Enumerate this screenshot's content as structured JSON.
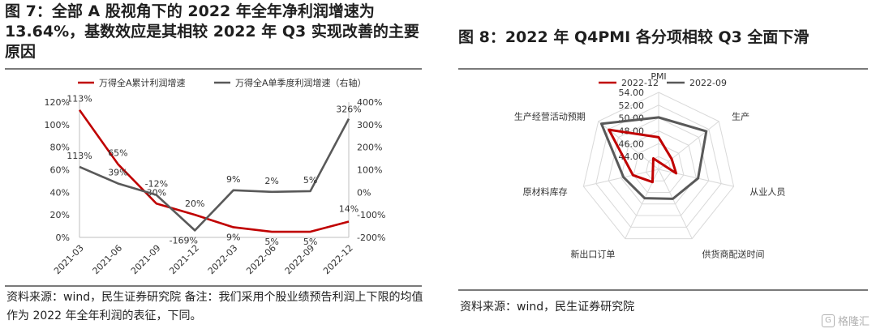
{
  "left": {
    "title": "图 7：全部 A 股视角下的 2022 年全年净利润增速为 13.64%，基数效应是其相较 2022 年 Q3 实现改善的主要原因",
    "note": "资料来源：wind，民生证券研究院 备注：我们采用个股业绩预告利润上下限的均值作为 2022 年全年利润的表征，下同。"
  },
  "right": {
    "title": "图 8：2022 年 Q4PMI 各分项相较 Q3 全面下滑",
    "note": "资料来源：wind，民生证券研究院"
  },
  "watermark": "格隆汇",
  "colors": {
    "red": "#c00000",
    "gray": "#595959",
    "grid": "#d9d9d9"
  },
  "chart_data": [
    {
      "type": "line",
      "categories": [
        "2021-03",
        "2021-06",
        "2021-09",
        "2021-12",
        "2022-03",
        "2022-06",
        "2022-09",
        "2022-12"
      ],
      "series": [
        {
          "name": "万得全A累计利润增速",
          "axis": "left",
          "values": [
            113,
            65,
            30,
            20,
            9,
            5,
            5,
            14
          ],
          "labels": [
            "113%",
            "65%",
            "30%",
            "20%",
            "9%",
            "5%",
            "5%",
            "14%"
          ],
          "color": "#c00000"
        },
        {
          "name": "万得全A单季度利润增速（右轴）",
          "axis": "right",
          "values": [
            113,
            39,
            -12,
            -169,
            9,
            2,
            5,
            326
          ],
          "labels": [
            "113%",
            "39%",
            "-12%",
            "-169%",
            "9%",
            "2%",
            "5%",
            "326%"
          ],
          "color": "#595959"
        }
      ],
      "y_left": {
        "ylim": [
          0,
          120
        ],
        "ticks": [
          "0%",
          "20%",
          "40%",
          "60%",
          "80%",
          "100%",
          "120%"
        ]
      },
      "y_right": {
        "ylim": [
          -200,
          400
        ],
        "ticks": [
          "-200%",
          "-100%",
          "0%",
          "100%",
          "200%",
          "300%",
          "400%"
        ]
      },
      "legend": "top",
      "grid": false
    },
    {
      "type": "radar",
      "axes": [
        "PMI",
        "生产",
        "从业人员",
        "供货商配送时间",
        "新出口订单",
        "原材料库存",
        "生产经营活动预期"
      ],
      "r_ticks": [
        "44.00",
        "46.00",
        "48.00",
        "50.00",
        "52.00",
        "54.00"
      ],
      "rlim": [
        42,
        54
      ],
      "series": [
        {
          "name": "2022-12",
          "values": [
            47.0,
            44.6,
            44.8,
            40.1,
            44.2,
            46.1,
            51.9
          ],
          "color": "#c00000"
        },
        {
          "name": "2022-09",
          "values": [
            50.1,
            51.5,
            48.3,
            47.1,
            47.0,
            47.6,
            53.4
          ],
          "color": "#595959"
        }
      ],
      "legend": "top"
    }
  ]
}
